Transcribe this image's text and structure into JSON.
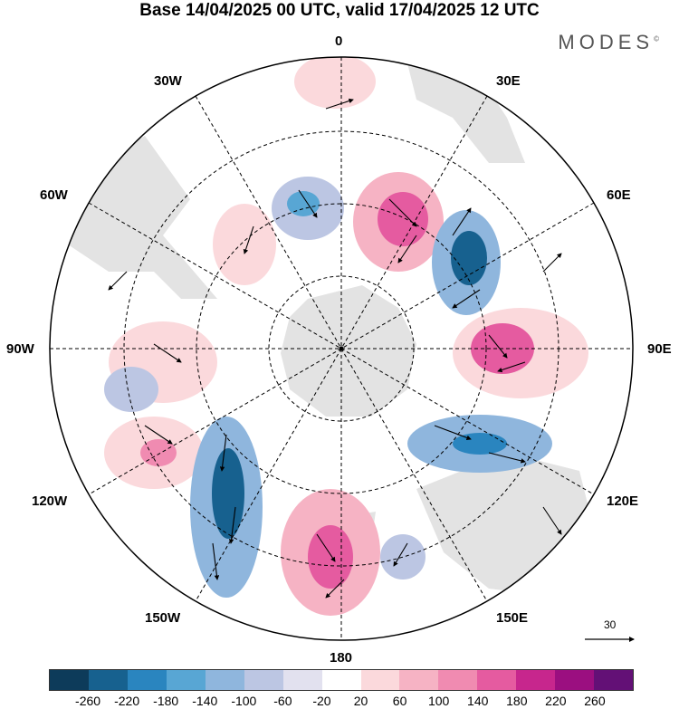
{
  "header": {
    "title": "Base 14/04/2025 00 UTC, valid 17/04/2025 12 UTC",
    "brand": "MODES"
  },
  "map": {
    "projection": "south-polar-stereographic",
    "longitude_labels": {
      "top": "0",
      "top_right": "30E",
      "upper_right": "60E",
      "right": "90E",
      "lower_right": "120E",
      "bottom_right": "150E",
      "bottom": "180",
      "bottom_left": "150W",
      "lower_left": "120W",
      "left": "90W",
      "upper_left": "60W",
      "top_left": "30W"
    },
    "reference_vector_label": "30"
  },
  "colorbar": {
    "colors": [
      "#0d3b5a",
      "#17618f",
      "#2a85bf",
      "#58a6d4",
      "#8fb6dd",
      "#bcc6e3",
      "#e2e1ef",
      "#ffffff",
      "#fbd9dc",
      "#f6b3c4",
      "#f08bb1",
      "#e55ba0",
      "#c7268d",
      "#9b0f80",
      "#631076"
    ],
    "tick_labels": [
      "-260",
      "-220",
      "-180",
      "-140",
      "-100",
      "-60",
      "-20",
      "20",
      "60",
      "100",
      "140",
      "180",
      "220",
      "260"
    ]
  }
}
